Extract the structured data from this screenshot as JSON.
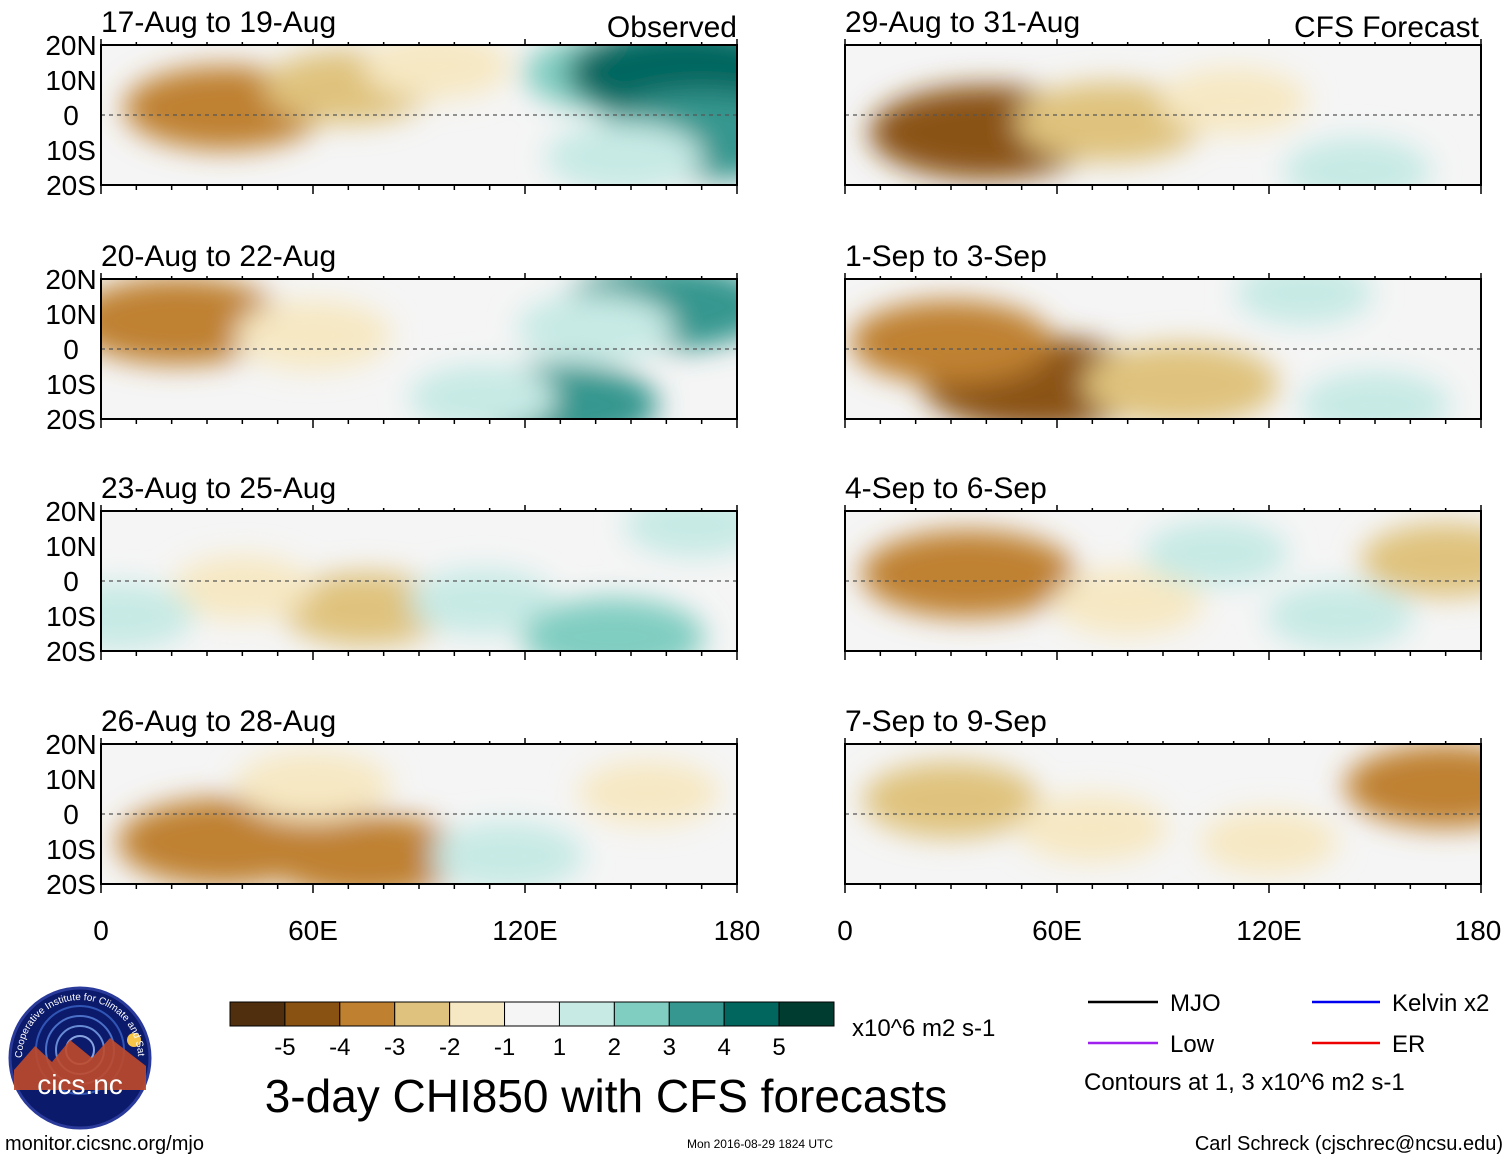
{
  "chart_data": {
    "type": "heatmap",
    "title": "3-day CHI850 with CFS forecasts",
    "variable": "CHI850",
    "units": "x10^6 m2 s-1",
    "x_range": [
      0,
      180
    ],
    "y_range": [
      -20,
      20
    ],
    "x_ticks": [
      "0",
      "60E",
      "120E",
      "180"
    ],
    "y_ticks": [
      "20N",
      "10N",
      "0",
      "10S",
      "20S"
    ],
    "observed_label": "Observed",
    "forecast_label": "CFS Forecast",
    "colorbar": {
      "ticks": [
        "-5",
        "-4",
        "-3",
        "-2",
        "-1",
        "1",
        "2",
        "3",
        "4",
        "5"
      ],
      "units": "x10^6 m2 s-1",
      "colors": [
        "#4f2f0e",
        "#8a5212",
        "#bf8130",
        "#dfc27d",
        "#f6e8c3",
        "#f5f5f5",
        "#c7eae5",
        "#80cdc1",
        "#35978f",
        "#01665e",
        "#003c30"
      ]
    },
    "legend": [
      {
        "label": "MJO",
        "color": "#000000"
      },
      {
        "label": "Kelvin x2",
        "color": "#0000ee"
      },
      {
        "label": "Low",
        "color": "#a020f0"
      },
      {
        "label": "ER",
        "color": "#ee0000"
      }
    ],
    "contour_note": "Contours at 1, 3 x10^6 m2 s-1",
    "panels": [
      {
        "title": "17-Aug to 19-Aug",
        "type": "observed",
        "anomalies": [
          {
            "lon": 35,
            "lat": 2,
            "value": -3.2
          },
          {
            "lon": 70,
            "lat": 8,
            "value": -2.2
          },
          {
            "lon": 95,
            "lat": 14,
            "value": -1.5
          },
          {
            "lon": 145,
            "lat": 12,
            "value": 2.5
          },
          {
            "lon": 165,
            "lat": 12,
            "value": 4.2
          },
          {
            "lon": 170,
            "lat": -6,
            "value": 3.6
          },
          {
            "lon": 148,
            "lat": -12,
            "value": 1.8
          }
        ]
      },
      {
        "title": "20-Aug to 22-Aug",
        "type": "observed",
        "anomalies": [
          {
            "lon": 22,
            "lat": 8,
            "value": -3.6
          },
          {
            "lon": 60,
            "lat": 4,
            "value": -1.8
          },
          {
            "lon": 160,
            "lat": 12,
            "value": 3.4
          },
          {
            "lon": 130,
            "lat": -16,
            "value": 3.0
          },
          {
            "lon": 108,
            "lat": -14,
            "value": 1.5
          },
          {
            "lon": 140,
            "lat": 6,
            "value": 1.8
          }
        ]
      },
      {
        "title": "23-Aug to 25-Aug",
        "type": "observed",
        "anomalies": [
          {
            "lon": 75,
            "lat": -8,
            "value": -2.2
          },
          {
            "lon": 40,
            "lat": -2,
            "value": -1.3
          },
          {
            "lon": 5,
            "lat": -10,
            "value": 1.6
          },
          {
            "lon": 108,
            "lat": -6,
            "value": 1.5
          },
          {
            "lon": 145,
            "lat": -16,
            "value": 2.6
          },
          {
            "lon": 168,
            "lat": 16,
            "value": 1.3
          }
        ]
      },
      {
        "title": "26-Aug to 28-Aug",
        "type": "observed",
        "anomalies": [
          {
            "lon": 35,
            "lat": -8,
            "value": -3.6
          },
          {
            "lon": 75,
            "lat": -12,
            "value": -3.2
          },
          {
            "lon": 60,
            "lat": 8,
            "value": -1.8
          },
          {
            "lon": 115,
            "lat": -12,
            "value": 1.7
          },
          {
            "lon": 155,
            "lat": 6,
            "value": -1.3
          }
        ]
      },
      {
        "title": "29-Aug to 31-Aug",
        "type": "forecast",
        "anomalies": [
          {
            "lon": 40,
            "lat": -5,
            "value": -4.2
          },
          {
            "lon": 75,
            "lat": -2,
            "value": -2.8
          },
          {
            "lon": 110,
            "lat": 4,
            "value": -1.5
          },
          {
            "lon": 145,
            "lat": -16,
            "value": 1.5
          }
        ]
      },
      {
        "title": "1-Sep to 3-Sep",
        "type": "forecast",
        "anomalies": [
          {
            "lon": 55,
            "lat": -10,
            "value": -4.2
          },
          {
            "lon": 30,
            "lat": 2,
            "value": -3.2
          },
          {
            "lon": 95,
            "lat": -10,
            "value": -3.0
          },
          {
            "lon": 150,
            "lat": -16,
            "value": 1.6
          },
          {
            "lon": 130,
            "lat": 16,
            "value": 1.2
          }
        ]
      },
      {
        "title": "4-Sep to 6-Sep",
        "type": "forecast",
        "anomalies": [
          {
            "lon": 35,
            "lat": 2,
            "value": -3.6
          },
          {
            "lon": 80,
            "lat": -6,
            "value": -1.6
          },
          {
            "lon": 170,
            "lat": 6,
            "value": -2.2
          },
          {
            "lon": 105,
            "lat": 8,
            "value": 1.4
          },
          {
            "lon": 140,
            "lat": -10,
            "value": 1.5
          }
        ]
      },
      {
        "title": "7-Sep to 9-Sep",
        "type": "forecast",
        "anomalies": [
          {
            "lon": 170,
            "lat": 8,
            "value": -3.2
          },
          {
            "lon": 30,
            "lat": 4,
            "value": -2.4
          },
          {
            "lon": 70,
            "lat": -4,
            "value": -1.6
          },
          {
            "lon": 120,
            "lat": -8,
            "value": -1.2
          }
        ]
      }
    ]
  },
  "logo": {
    "text": "cics.nc",
    "ring_text": "Cooperative Institute for Climate and Satellites"
  },
  "footer": {
    "website": "monitor.cicsnc.org/mjo",
    "timestamp": "Mon 2016-08-29 1824 UTC",
    "credit": "Carl Schreck (cjschrec@ncsu.edu)"
  }
}
